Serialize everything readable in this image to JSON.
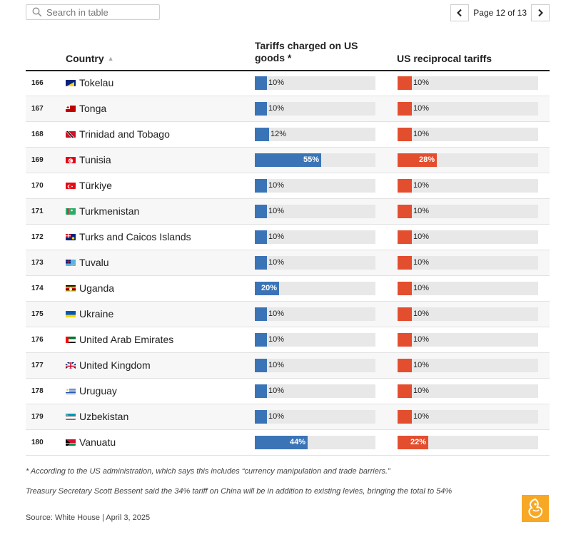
{
  "search": {
    "placeholder": "Search in table"
  },
  "pager": {
    "label": "Page 12 of 13"
  },
  "icons": {
    "search": "search-icon",
    "prev": "chevron-left-icon",
    "next": "chevron-right-icon",
    "sort": "sort-up-icon",
    "logo": "al-jazeera-logo"
  },
  "colors": {
    "tariffs_bar": "#3a74b7",
    "us_bar": "#e34e2f",
    "track": "#e8e8e8"
  },
  "table": {
    "headers": {
      "country": "Country",
      "tariffs": "Tariffs charged on US goods *",
      "us": "US reciprocal tariffs"
    }
  },
  "notes": {
    "asterisk": "* According to the US administration, which says this includes “currency manipulation and trade barriers.”",
    "bessent": "Treasury Secretary Scott Bessent said the 34% tariff on China will be in addition to existing levies, bringing the total to 54%"
  },
  "source": "Source: White House | April 3, 2025",
  "chart_data": {
    "type": "table",
    "xlim": [
      0,
      100
    ],
    "columns": [
      "rank",
      "country",
      "tariffs",
      "us"
    ],
    "rows": [
      {
        "rank": "166",
        "country": "Tokelau",
        "tariffs": 10,
        "us": 10
      },
      {
        "rank": "167",
        "country": "Tonga",
        "tariffs": 10,
        "us": 10
      },
      {
        "rank": "168",
        "country": "Trinidad and Tobago",
        "tariffs": 12,
        "us": 10
      },
      {
        "rank": "169",
        "country": "Tunisia",
        "tariffs": 55,
        "us": 28
      },
      {
        "rank": "170",
        "country": "Türkiye",
        "tariffs": 10,
        "us": 10
      },
      {
        "rank": "171",
        "country": "Turkmenistan",
        "tariffs": 10,
        "us": 10
      },
      {
        "rank": "172",
        "country": "Turks and Caicos Islands",
        "tariffs": 10,
        "us": 10
      },
      {
        "rank": "173",
        "country": "Tuvalu",
        "tariffs": 10,
        "us": 10
      },
      {
        "rank": "174",
        "country": "Uganda",
        "tariffs": 20,
        "us": 10
      },
      {
        "rank": "175",
        "country": "Ukraine",
        "tariffs": 10,
        "us": 10
      },
      {
        "rank": "176",
        "country": "United Arab Emirates",
        "tariffs": 10,
        "us": 10
      },
      {
        "rank": "177",
        "country": "United Kingdom",
        "tariffs": 10,
        "us": 10
      },
      {
        "rank": "178",
        "country": "Uruguay",
        "tariffs": 10,
        "us": 10
      },
      {
        "rank": "179",
        "country": "Uzbekistan",
        "tariffs": 10,
        "us": 10
      },
      {
        "rank": "180",
        "country": "Vanuatu",
        "tariffs": 44,
        "us": 22
      }
    ]
  }
}
